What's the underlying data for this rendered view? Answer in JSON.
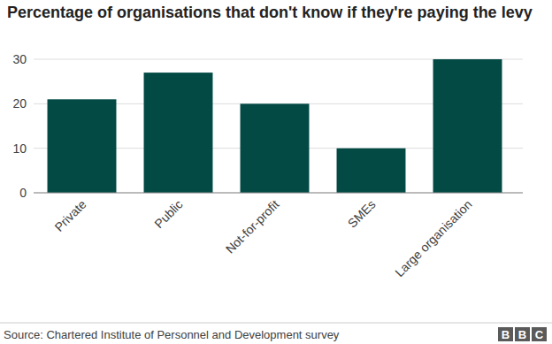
{
  "chart_data": {
    "type": "bar",
    "title": "Percentage of organisations that don't know if they're paying the levy",
    "categories": [
      "Private",
      "Public",
      "Not-for-profit",
      "SMEs",
      "Large organisation"
    ],
    "values": [
      21,
      27,
      20,
      10,
      30
    ],
    "color": "#034a45",
    "ylim": [
      0,
      30
    ],
    "yticks": [
      0,
      10,
      20,
      30
    ],
    "grid": true,
    "source": "Source: Chartered Institute of Personnel and Development survey",
    "logo": "BBC"
  }
}
